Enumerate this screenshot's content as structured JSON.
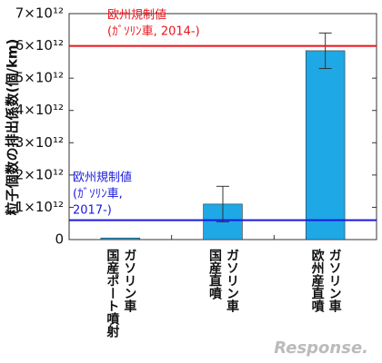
{
  "chart_data": {
    "type": "bar",
    "ylabel": "粒子個数の排出係数(個/km)",
    "categories": [
      [
        "国産ポート噴射",
        "ガソリン車"
      ],
      [
        "国産直噴",
        "ガソリン車"
      ],
      [
        "欧州産直噴",
        "ガソリン車"
      ]
    ],
    "values": [
      50000000000,
      1100000000000,
      5850000000000
    ],
    "errors": [
      null,
      550000000000,
      550000000000
    ],
    "color": "#1ea8e6",
    "ylim": [
      0,
      7000000000000
    ],
    "yticks": [
      0,
      {
        "value": 1000000000000,
        "label": "1×10¹²"
      },
      {
        "value": 2000000000000,
        "label": "2×10¹²"
      },
      {
        "value": 3000000000000,
        "label": "3×10¹²"
      },
      {
        "value": 4000000000000,
        "label": "4×10¹²"
      },
      {
        "value": 5000000000000,
        "label": "5×10¹²"
      },
      {
        "value": 6000000000000,
        "label": "6×10¹²"
      },
      {
        "value": 7000000000000,
        "label": "7×10¹²"
      }
    ],
    "reference_lines": [
      {
        "value": 6000000000000,
        "color": "#e8141b",
        "label": [
          "欧州規制値",
          "(ｶﾞｿﾘﾝ車, 2014-)"
        ]
      },
      {
        "value": 600000000000,
        "color": "#1a1adc",
        "label": [
          "欧州規制値",
          "(ｶﾞｿﾘﾝ車,",
          "2017-)"
        ]
      }
    ],
    "watermark": "Response."
  }
}
